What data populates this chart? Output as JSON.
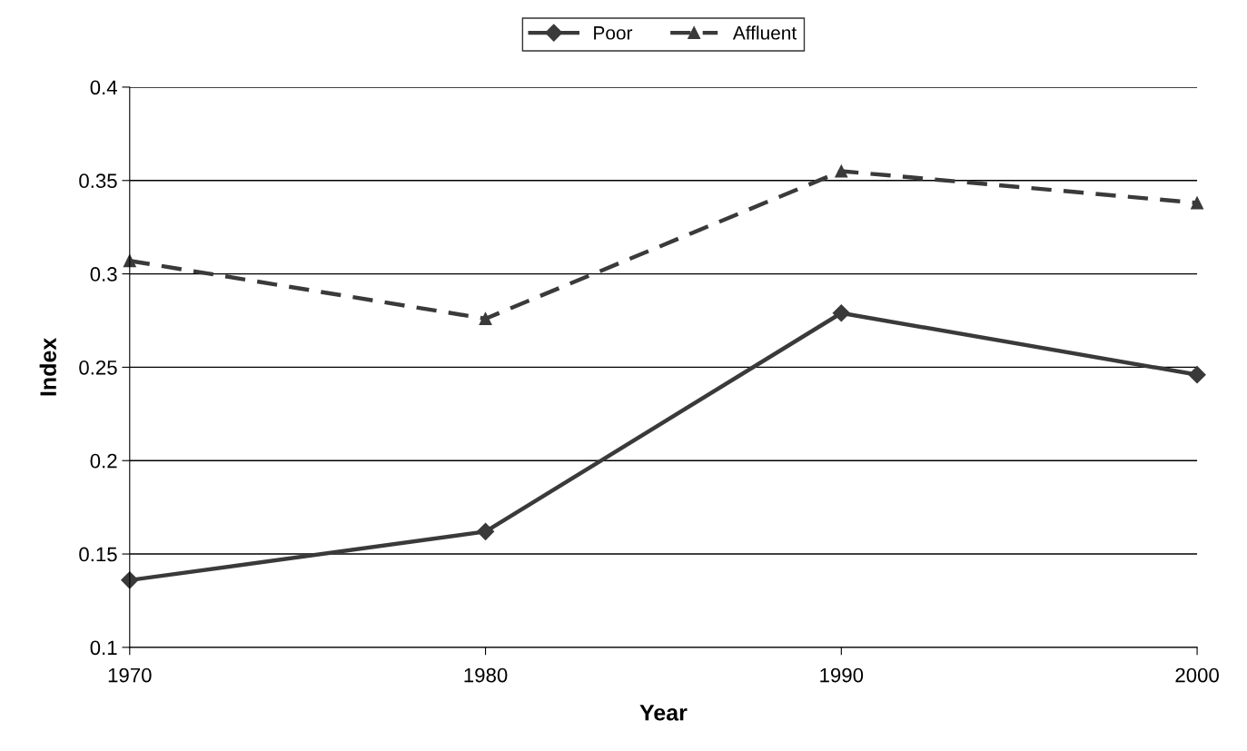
{
  "chart_data": {
    "type": "line",
    "xlabel": "Year",
    "ylabel": "Index",
    "x": [
      1970,
      1980,
      1990,
      2000
    ],
    "series": [
      {
        "name": "Poor",
        "color": "#3a3a3a",
        "marker": "diamond",
        "line_style": "solid",
        "values": [
          0.136,
          0.162,
          0.279,
          0.246
        ]
      },
      {
        "name": "Affluent",
        "color": "#3a3a3a",
        "marker": "triangle",
        "line_style": "dashed",
        "values": [
          0.307,
          0.276,
          0.355,
          0.338
        ]
      }
    ],
    "xlim": [
      1970,
      2000
    ],
    "xticks": [
      1970,
      1980,
      1990,
      2000
    ],
    "ylim": [
      0.1,
      0.4
    ],
    "yticks": [
      0.1,
      0.15,
      0.2,
      0.25,
      0.3,
      0.35,
      0.4
    ],
    "grid": "y",
    "legend": "top"
  }
}
